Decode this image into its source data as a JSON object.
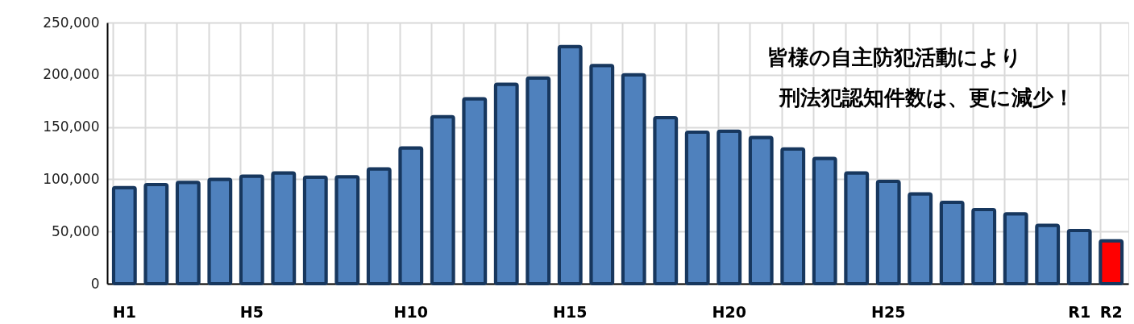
{
  "chart_data": {
    "type": "bar",
    "categories": [
      "H1",
      null,
      null,
      null,
      "H5",
      null,
      null,
      null,
      null,
      "H10",
      null,
      null,
      null,
      null,
      "H15",
      null,
      null,
      null,
      null,
      "H20",
      null,
      null,
      null,
      null,
      "H25",
      null,
      null,
      null,
      null,
      null,
      "R1",
      "R2"
    ],
    "values": [
      92000,
      95000,
      97000,
      100000,
      103000,
      106000,
      102000,
      102500,
      110000,
      130000,
      160000,
      177000,
      191000,
      197000,
      227000,
      209000,
      200000,
      159000,
      145000,
      146000,
      140000,
      129000,
      120000,
      106000,
      98000,
      86000,
      78000,
      71000,
      67000,
      56000,
      51000,
      41000
    ],
    "colors": [
      "#4f81bd",
      "#4f81bd",
      "#4f81bd",
      "#4f81bd",
      "#4f81bd",
      "#4f81bd",
      "#4f81bd",
      "#4f81bd",
      "#4f81bd",
      "#4f81bd",
      "#4f81bd",
      "#4f81bd",
      "#4f81bd",
      "#4f81bd",
      "#4f81bd",
      "#4f81bd",
      "#4f81bd",
      "#4f81bd",
      "#4f81bd",
      "#4f81bd",
      "#4f81bd",
      "#4f81bd",
      "#4f81bd",
      "#4f81bd",
      "#4f81bd",
      "#4f81bd",
      "#4f81bd",
      "#4f81bd",
      "#4f81bd",
      "#4f81bd",
      "#4f81bd",
      "#ff0000"
    ],
    "ylim": [
      0,
      250000
    ],
    "yticks": [
      0,
      {
        "value": 50000,
        "label": "50,000"
      },
      {
        "value": 100000,
        "label": "100,000"
      },
      {
        "value": 150000,
        "label": "150,000"
      },
      {
        "value": 200000,
        "label": "200,000"
      },
      {
        "value": 250000,
        "label": "250,000"
      }
    ],
    "grid": true,
    "annotations": [
      "皆様の自主防犯活動により",
      "刑法犯認知件数は、更に減少！"
    ]
  }
}
